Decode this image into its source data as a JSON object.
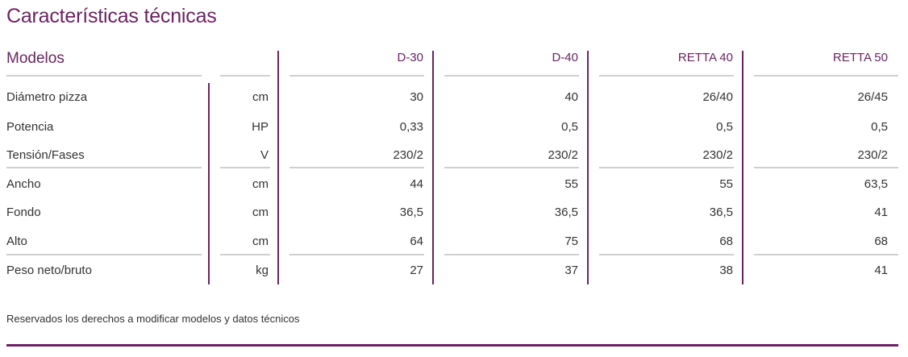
{
  "title": "Características técnicas",
  "header": {
    "modelos_label": "Modelos",
    "models": [
      "D-30",
      "D-40",
      "RETTA 40",
      "RETTA 50"
    ]
  },
  "rows": [
    {
      "label": "Diámetro pizza",
      "unit": "cm",
      "values": [
        "30",
        "40",
        "26/40",
        "26/45"
      ]
    },
    {
      "label": "Potencia",
      "unit": "HP",
      "values": [
        "0,33",
        "0,5",
        "0,5",
        "0,5"
      ]
    },
    {
      "label": "Tensión/Fases",
      "unit": "V",
      "values": [
        "230/2",
        "230/2",
        "230/2",
        "230/2"
      ]
    },
    {
      "label": "Ancho",
      "unit": "cm",
      "values": [
        "44",
        "55",
        "55",
        "63,5"
      ]
    },
    {
      "label": "Fondo",
      "unit": "cm",
      "values": [
        "36,5",
        "36,5",
        "36,5",
        "41"
      ]
    },
    {
      "label": "Alto",
      "unit": "cm",
      "values": [
        "64",
        "75",
        "68",
        "68"
      ]
    },
    {
      "label": "Peso neto/bruto",
      "unit": "kg",
      "values": [
        "27",
        "37",
        "38",
        "41"
      ]
    }
  ],
  "footer_note": "Reservados los derechos a modificar modelos y datos técnicos",
  "colors": {
    "accent": "#6a2461",
    "text": "#333333",
    "rule": "#cfcfcf"
  }
}
